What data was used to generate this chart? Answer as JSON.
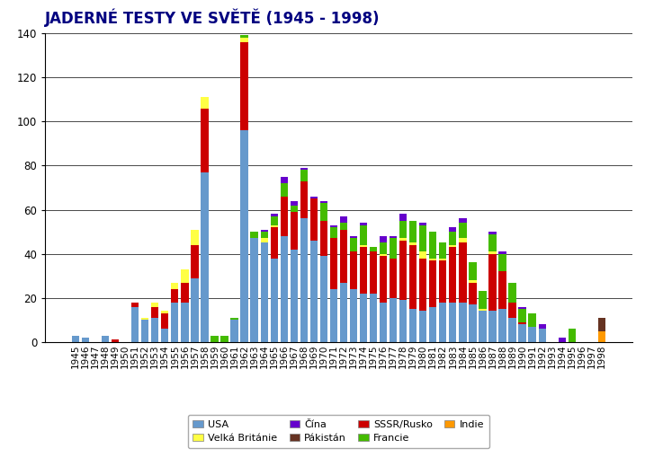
{
  "title": "JADERNÉ TESTY VE SVĚTĚ (1945 - 1998)",
  "years": [
    1945,
    1946,
    1947,
    1948,
    1949,
    1950,
    1951,
    1952,
    1953,
    1954,
    1955,
    1956,
    1957,
    1958,
    1959,
    1960,
    1961,
    1962,
    1963,
    1964,
    1965,
    1966,
    1967,
    1968,
    1969,
    1970,
    1971,
    1972,
    1973,
    1974,
    1975,
    1976,
    1977,
    1978,
    1979,
    1980,
    1981,
    1982,
    1983,
    1984,
    1985,
    1986,
    1987,
    1988,
    1989,
    1990,
    1991,
    1992,
    1993,
    1994,
    1995,
    1996,
    1997,
    1998
  ],
  "USA": [
    3,
    2,
    0,
    3,
    0,
    0,
    16,
    10,
    11,
    6,
    18,
    18,
    29,
    77,
    0,
    0,
    10,
    96,
    47,
    45,
    38,
    48,
    42,
    56,
    46,
    39,
    24,
    27,
    24,
    22,
    22,
    18,
    20,
    19,
    15,
    14,
    16,
    18,
    18,
    18,
    17,
    14,
    14,
    15,
    11,
    8,
    7,
    6,
    0,
    0,
    0,
    0,
    0,
    0
  ],
  "SSSR": [
    0,
    0,
    0,
    0,
    1,
    0,
    2,
    0,
    5,
    7,
    6,
    9,
    15,
    29,
    0,
    0,
    0,
    40,
    0,
    0,
    14,
    18,
    17,
    17,
    19,
    16,
    23,
    24,
    17,
    21,
    19,
    21,
    18,
    27,
    29,
    24,
    21,
    19,
    25,
    27,
    10,
    0,
    26,
    17,
    7,
    1,
    0,
    0,
    0,
    0,
    0,
    0,
    0,
    0
  ],
  "UK": [
    0,
    0,
    0,
    0,
    0,
    0,
    0,
    1,
    2,
    1,
    3,
    6,
    7,
    5,
    0,
    0,
    0,
    2,
    0,
    2,
    1,
    0,
    0,
    0,
    0,
    0,
    0,
    0,
    0,
    1,
    0,
    1,
    0,
    1,
    1,
    3,
    1,
    1,
    1,
    2,
    1,
    1,
    1,
    0,
    0,
    0,
    0,
    0,
    0,
    0,
    0,
    0,
    0,
    0
  ],
  "France": [
    0,
    0,
    0,
    0,
    0,
    0,
    0,
    0,
    0,
    0,
    0,
    0,
    0,
    0,
    3,
    3,
    1,
    1,
    3,
    3,
    4,
    6,
    3,
    5,
    0,
    8,
    5,
    3,
    6,
    9,
    2,
    5,
    9,
    8,
    10,
    12,
    12,
    7,
    6,
    7,
    8,
    8,
    8,
    8,
    9,
    6,
    6,
    0,
    0,
    0,
    6,
    0,
    0,
    0
  ],
  "China": [
    0,
    0,
    0,
    0,
    0,
    0,
    0,
    0,
    0,
    0,
    0,
    0,
    0,
    0,
    0,
    0,
    0,
    0,
    0,
    1,
    1,
    3,
    2,
    1,
    1,
    1,
    1,
    3,
    1,
    1,
    0,
    3,
    1,
    3,
    0,
    1,
    0,
    0,
    2,
    2,
    0,
    0,
    1,
    1,
    0,
    1,
    0,
    2,
    0,
    2,
    0,
    0,
    0,
    0
  ],
  "India": [
    0,
    0,
    0,
    0,
    0,
    0,
    0,
    0,
    0,
    0,
    0,
    0,
    0,
    0,
    0,
    0,
    0,
    0,
    0,
    0,
    0,
    0,
    0,
    0,
    0,
    0,
    0,
    0,
    0,
    0,
    0,
    0,
    0,
    0,
    0,
    0,
    0,
    0,
    0,
    0,
    0,
    0,
    0,
    0,
    0,
    0,
    0,
    0,
    0,
    0,
    0,
    0,
    0,
    5
  ],
  "Pakistan": [
    0,
    0,
    0,
    0,
    0,
    0,
    0,
    0,
    0,
    0,
    0,
    0,
    0,
    0,
    0,
    0,
    0,
    0,
    0,
    0,
    0,
    0,
    0,
    0,
    0,
    0,
    0,
    0,
    0,
    0,
    0,
    0,
    0,
    0,
    0,
    0,
    0,
    0,
    0,
    0,
    0,
    0,
    0,
    0,
    0,
    0,
    0,
    0,
    0,
    0,
    0,
    0,
    0,
    6
  ],
  "colors": {
    "USA": "#6699CC",
    "SSSR": "#CC0000",
    "UK": "#FFFF44",
    "France": "#44BB00",
    "China": "#6600CC",
    "India": "#FF9900",
    "Pakistan": "#663322"
  },
  "legend_labels": {
    "USA": "USA",
    "SSSR": "SSSR/Rusko",
    "UK": "Velká Británie",
    "France": "Francie",
    "China": "Čína",
    "India": "Indie",
    "Pakistan": "Pákistán"
  },
  "ylim": [
    0,
    140
  ],
  "yticks": [
    0,
    20,
    40,
    60,
    80,
    100,
    120,
    140
  ],
  "background_color": "#FFFFFF",
  "title_color": "#000080",
  "title_fontsize": 12,
  "axis_fontsize": 7.5
}
